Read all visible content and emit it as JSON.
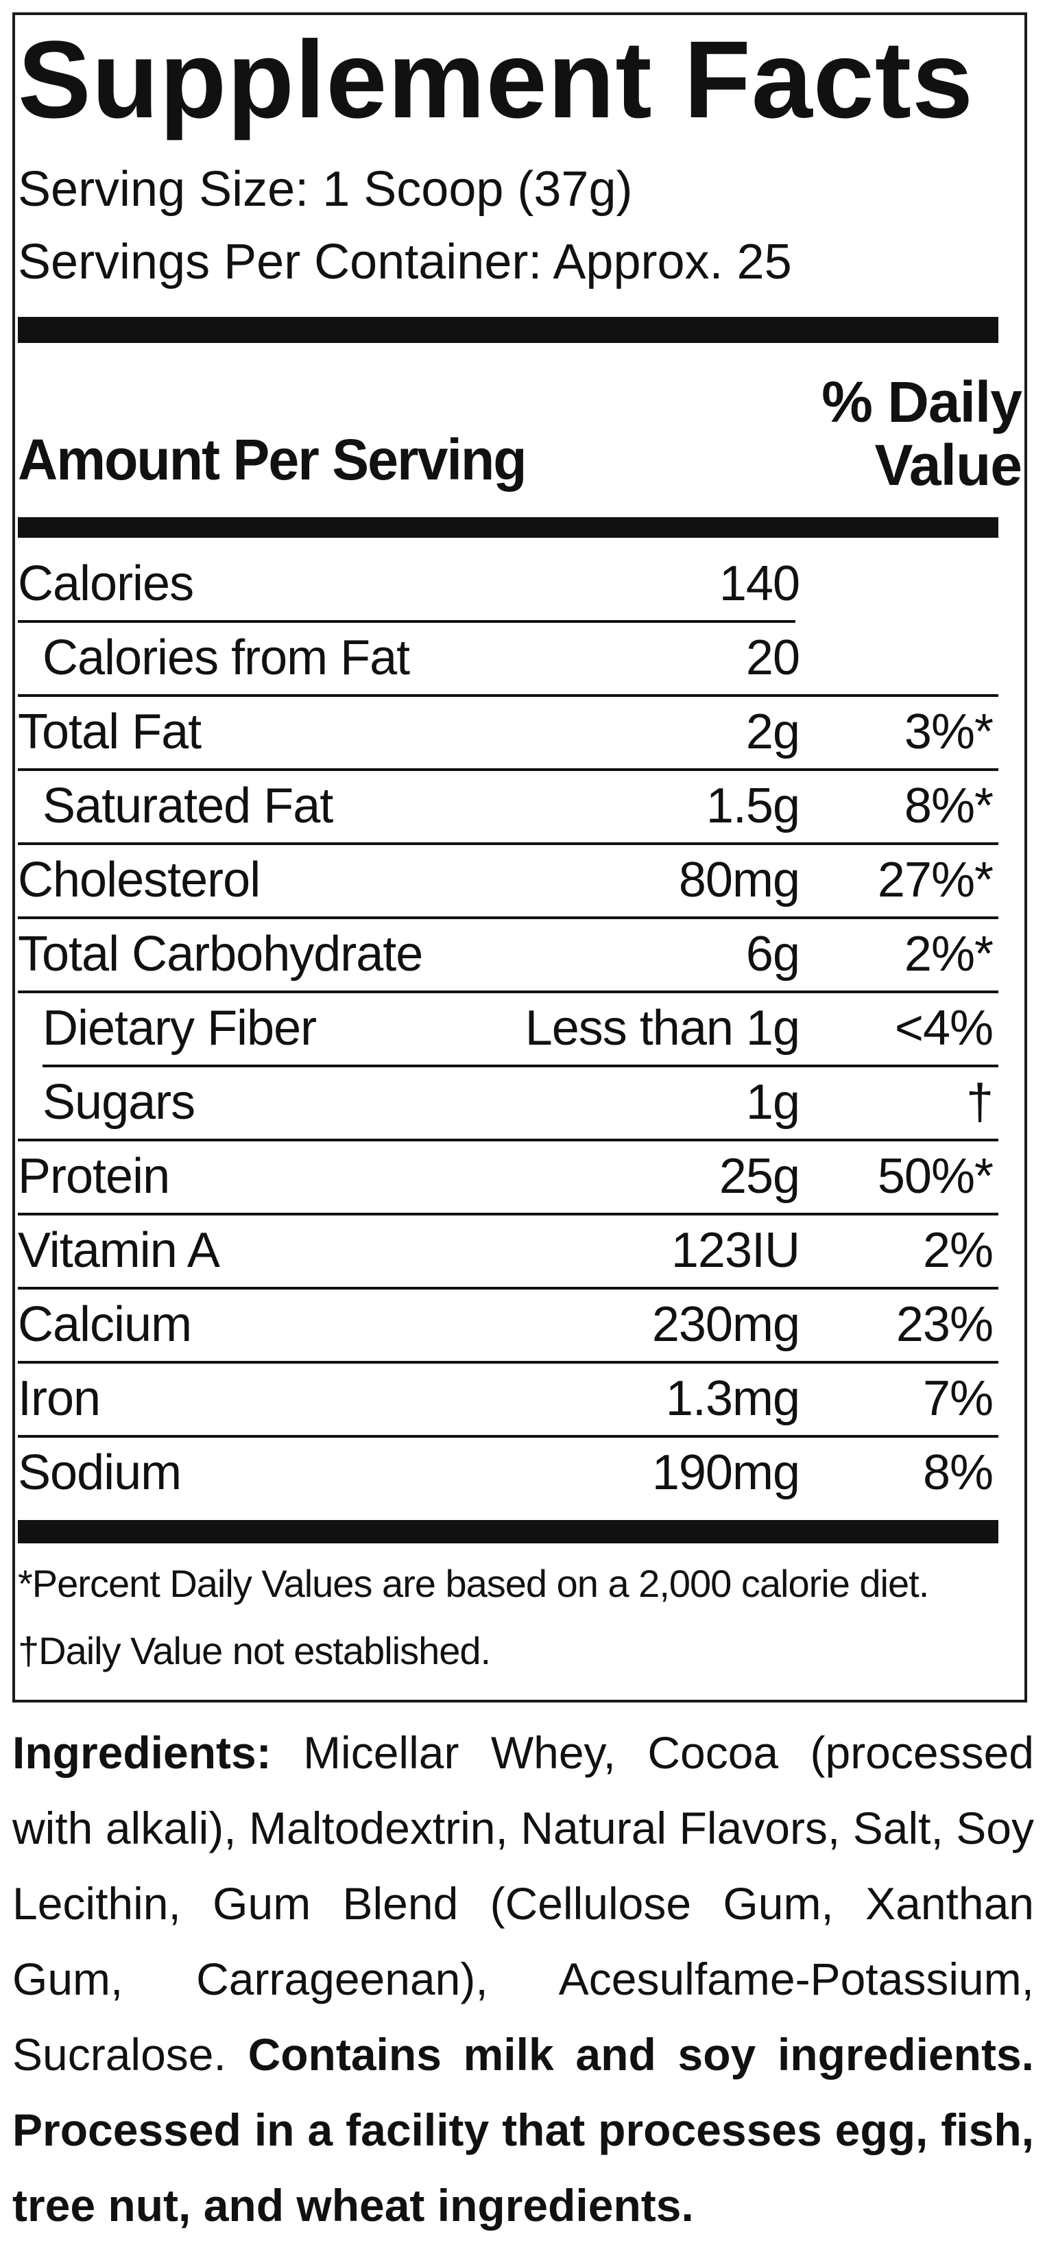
{
  "label": {
    "title": "Supplement Facts",
    "serving_size": "Serving Size: 1 Scoop (37g)",
    "servings_per_container": "Servings Per Container: Approx. 25",
    "amount_per_serving": "Amount Per Serving",
    "daily_value_line1": "% Daily",
    "daily_value_line2": "Value"
  },
  "nutrients": [
    {
      "name": "Calories",
      "amount": "140",
      "dv": ""
    },
    {
      "name": "Calories from Fat",
      "amount": "20",
      "dv": ""
    },
    {
      "name": "Total Fat",
      "amount": "2g",
      "dv": "3%*"
    },
    {
      "name": "Saturated Fat",
      "amount": "1.5g",
      "dv": "8%*"
    },
    {
      "name": "Cholesterol",
      "amount": "80mg",
      "dv": "27%*"
    },
    {
      "name": "Total Carbohydrate",
      "amount": "6g",
      "dv": "2%*"
    },
    {
      "name": "Dietary Fiber",
      "amount": "Less than 1g",
      "dv": "<4%"
    },
    {
      "name": "Sugars",
      "amount": "1g",
      "dv": "†"
    },
    {
      "name": "Protein",
      "amount": "25g",
      "dv": "50%*"
    },
    {
      "name": "Vitamin A",
      "amount": "123IU",
      "dv": "2%"
    },
    {
      "name": "Calcium",
      "amount": "230mg",
      "dv": "23%"
    },
    {
      "name": "Iron",
      "amount": "1.3mg",
      "dv": "7%"
    },
    {
      "name": "Sodium",
      "amount": "190mg",
      "dv": "8%"
    }
  ],
  "footnotes": {
    "percent_note": "*Percent Daily Values are based on a 2,000 calorie diet.",
    "dagger_note": "†Daily Value not established."
  },
  "ingredients": {
    "heading": "Ingredients:",
    "list": " Micellar Whey, Cocoa (processed with alkali), Maltodextrin, Natural Flavors, Salt, Soy Lecithin, Gum Blend (Cellulose Gum, Xanthan Gum, Carrageenan), Acesulfame-Potassium, Sucralose. ",
    "allergen_statement": "Contains milk and soy ingredients. Processed in a facility that processes egg, fish, tree nut, and wheat ingredients."
  }
}
